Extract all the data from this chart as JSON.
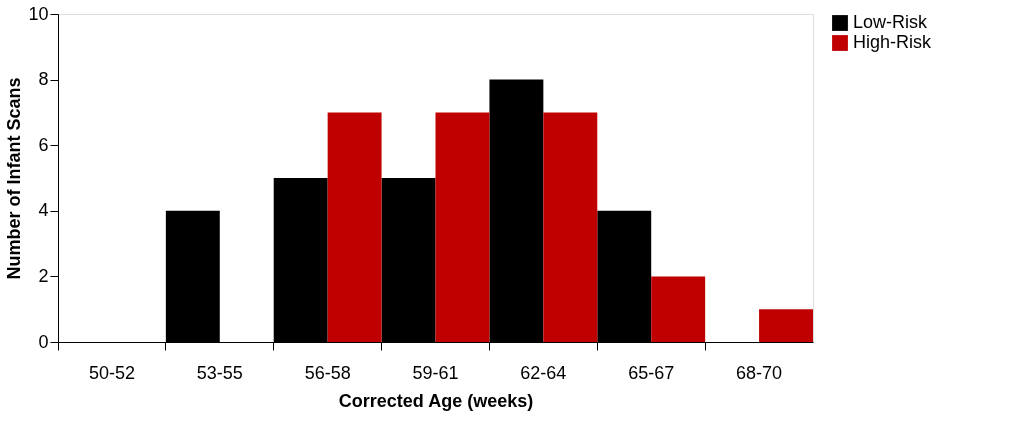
{
  "chart_data": {
    "type": "bar",
    "xlabel": "Corrected Age (weeks)",
    "ylabel": "Number of Infant Scans",
    "categories": [
      "50-52",
      "53-55",
      "56-58",
      "59-61",
      "62-64",
      "65-67",
      "68-70"
    ],
    "series": [
      {
        "name": "Low-Risk",
        "color": "#000000",
        "values": [
          0,
          4,
          5,
          5,
          8,
          4,
          0
        ]
      },
      {
        "name": "High-Risk",
        "color": "#c00000",
        "values": [
          0,
          0,
          7,
          7,
          7,
          2,
          1
        ]
      }
    ],
    "ylim": [
      0,
      10
    ],
    "yticks": [
      0,
      2,
      4,
      6,
      8,
      10
    ],
    "grid": false,
    "legend": "right"
  }
}
